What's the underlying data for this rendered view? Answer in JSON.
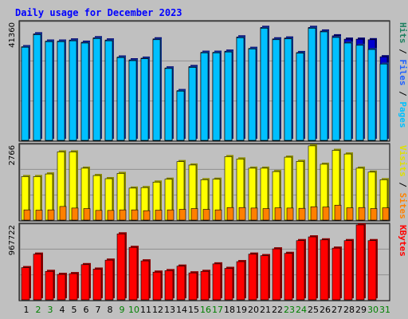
{
  "chart_data": [
    {
      "type": "bar",
      "title": "Daily usage for December 2023",
      "ymax_label": "41360",
      "legend": [
        {
          "label": "Pages",
          "color": "#00c0ff"
        },
        {
          "label": "Files",
          "color": "#2060ff"
        },
        {
          "label": "Hits",
          "color": "#208060"
        }
      ],
      "ymax": 41360,
      "categories": [
        "1",
        "2",
        "3",
        "4",
        "5",
        "6",
        "7",
        "8",
        "9",
        "10",
        "11",
        "12",
        "13",
        "14",
        "15",
        "16",
        "17",
        "18",
        "19",
        "20",
        "21",
        "22",
        "23",
        "24",
        "25",
        "26",
        "27",
        "28",
        "29",
        "30",
        "31"
      ],
      "weekend_days": [
        "2",
        "3",
        "9",
        "10",
        "16",
        "17",
        "23",
        "24",
        "30",
        "31"
      ],
      "series": [
        {
          "name": "Hits",
          "color": "#0000d0",
          "values": [
            33500,
            38100,
            35500,
            35500,
            35900,
            35100,
            36700,
            35900,
            29800,
            28800,
            29400,
            36300,
            25900,
            17800,
            26400,
            31500,
            31500,
            31900,
            37000,
            32900,
            40400,
            36300,
            36600,
            31400,
            40400,
            39100,
            37400,
            36200,
            36200,
            36000,
            29900
          ]
        },
        {
          "name": "Files",
          "color": "#2060ff",
          "values": [
            33300,
            37800,
            35300,
            35300,
            35600,
            34800,
            36400,
            35600,
            29600,
            28500,
            29200,
            36000,
            25700,
            17600,
            26100,
            31300,
            31300,
            31600,
            36700,
            32700,
            40100,
            36000,
            36300,
            31200,
            40100,
            38800,
            36800,
            34800,
            34000,
            32500,
            27300
          ]
        },
        {
          "name": "Pages",
          "color": "#00c0ff",
          "values": [
            33300,
            37800,
            35300,
            35300,
            35600,
            34800,
            36400,
            35600,
            29600,
            28500,
            29200,
            36000,
            25700,
            17600,
            26100,
            31300,
            31300,
            31600,
            36700,
            32700,
            40100,
            36000,
            36300,
            31200,
            40100,
            38800,
            36800,
            34800,
            34000,
            32500,
            27300
          ]
        }
      ]
    },
    {
      "type": "bar",
      "ymax_label": "2766",
      "legend": [
        {
          "label": "Sites",
          "color": "#ff8000"
        },
        {
          "label": "Visits",
          "color": "#e0e000"
        }
      ],
      "ymax": 2766,
      "categories": [
        "1",
        "2",
        "3",
        "4",
        "5",
        "6",
        "7",
        "8",
        "9",
        "10",
        "11",
        "12",
        "13",
        "14",
        "15",
        "16",
        "17",
        "18",
        "19",
        "20",
        "21",
        "22",
        "23",
        "24",
        "25",
        "26",
        "27",
        "28",
        "29",
        "30",
        "31"
      ],
      "series": [
        {
          "name": "Visits",
          "color": "#ffff00",
          "values": [
            1660,
            1660,
            1760,
            2600,
            2600,
            1980,
            1700,
            1580,
            1780,
            1220,
            1240,
            1450,
            1560,
            2230,
            2100,
            1540,
            1560,
            2420,
            2330,
            1980,
            1980,
            1850,
            2400,
            2240,
            2830,
            2130,
            2660,
            2520,
            1980,
            1830,
            1540
          ]
        },
        {
          "name": "Sites",
          "color": "#ff8000",
          "values": [
            390,
            380,
            390,
            520,
            460,
            440,
            370,
            370,
            390,
            390,
            360,
            380,
            390,
            410,
            440,
            410,
            390,
            480,
            480,
            460,
            440,
            470,
            460,
            450,
            510,
            500,
            570,
            470,
            480,
            440,
            470
          ]
        }
      ]
    },
    {
      "type": "bar",
      "ymax_label": "967722",
      "legend": [
        {
          "label": "KBytes",
          "color": "#ff0000"
        }
      ],
      "ymax": 967722,
      "categories": [
        "1",
        "2",
        "3",
        "4",
        "5",
        "6",
        "7",
        "8",
        "9",
        "10",
        "11",
        "12",
        "13",
        "14",
        "15",
        "16",
        "17",
        "18",
        "19",
        "20",
        "21",
        "22",
        "23",
        "24",
        "25",
        "26",
        "27",
        "28",
        "29",
        "30",
        "31"
      ],
      "series": [
        {
          "name": "KBytes",
          "color": "#ff0000",
          "values": [
            430000,
            610000,
            380000,
            340000,
            350000,
            470000,
            410000,
            530000,
            880000,
            700000,
            520000,
            370000,
            390000,
            450000,
            360000,
            380000,
            480000,
            420000,
            510000,
            610000,
            590000,
            680000,
            620000,
            790000,
            840000,
            800000,
            690000,
            790000,
            1000000,
            790000,
            0
          ]
        }
      ]
    }
  ]
}
